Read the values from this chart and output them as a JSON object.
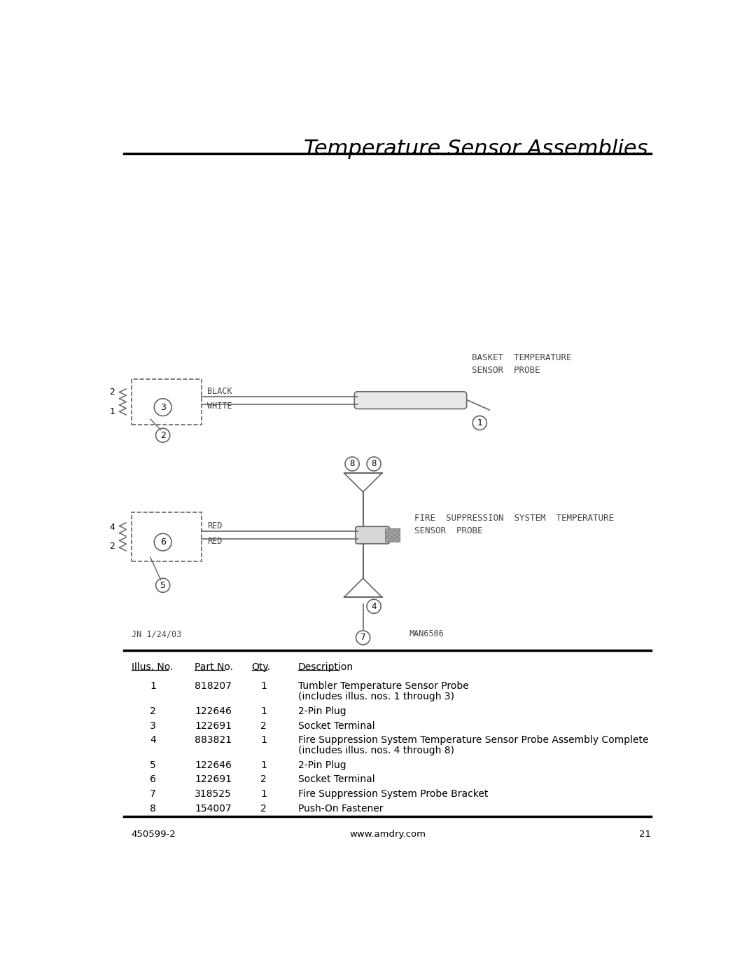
{
  "title": "Temperature Sensor Assemblies",
  "page_num": "21",
  "part_num_left": "450599-2",
  "website": "www.amdry.com",
  "date_stamp": "JN 1/24/03",
  "man_num": "MAN6506",
  "bg_color": "#ffffff",
  "table_headers": [
    "Illus. No.",
    "Part No.",
    "Qty.",
    "Description"
  ],
  "table_rows": [
    [
      "1",
      "818207",
      "1",
      "Tumbler Temperature Sensor Probe\n(includes illus. nos. 1 through 3)"
    ],
    [
      "2",
      "122646",
      "1",
      "2-Pin Plug"
    ],
    [
      "3",
      "122691",
      "2",
      "Socket Terminal"
    ],
    [
      "4",
      "883821",
      "1",
      "Fire Suppression System Temperature Sensor Probe Assembly Complete\n(includes illus. nos. 4 through 8)"
    ],
    [
      "5",
      "122646",
      "1",
      "2-Pin Plug"
    ],
    [
      "6",
      "122691",
      "2",
      "Socket Terminal"
    ],
    [
      "7",
      "318525",
      "1",
      "Fire Suppression System Probe Bracket"
    ],
    [
      "8",
      "154007",
      "2",
      "Push-On Fastener"
    ]
  ]
}
